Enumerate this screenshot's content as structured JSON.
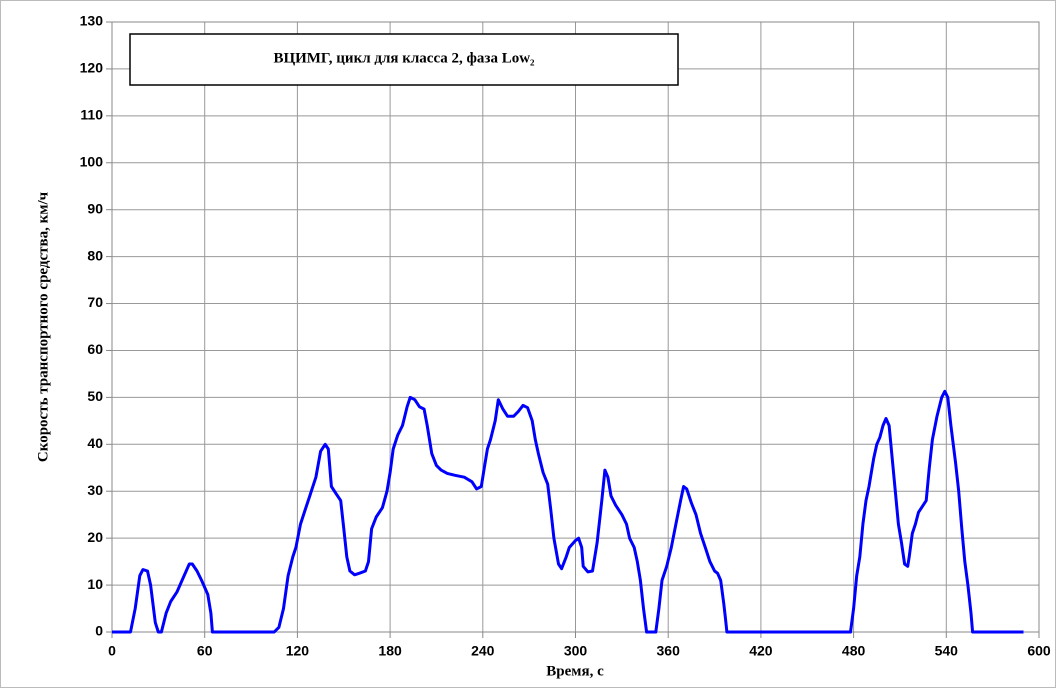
{
  "chart_data": {
    "type": "line",
    "title": "ВЦИМГ, цикл для класса 2, фаза Low₂",
    "x_label": "Время, с",
    "y_label": "Скорость транспортного средства, км/ч",
    "color": "#0000ff",
    "grid": true,
    "xlim": [
      0,
      600
    ],
    "ylim": [
      0,
      130
    ],
    "xticks": [
      0,
      60,
      120,
      180,
      240,
      300,
      360,
      420,
      480,
      540,
      600
    ],
    "yticks": [
      0,
      10,
      20,
      30,
      40,
      50,
      60,
      70,
      80,
      90,
      100,
      110,
      120,
      130
    ],
    "x": [
      0,
      12,
      15,
      18,
      20,
      23,
      25,
      28,
      30,
      32,
      35,
      38,
      42,
      46,
      50,
      52,
      55,
      58,
      62,
      64,
      65,
      68,
      105,
      108,
      111,
      114,
      117,
      119,
      122,
      125,
      128,
      132,
      135,
      138,
      140,
      142,
      145,
      148,
      150,
      152,
      154,
      157,
      160,
      164,
      166,
      168,
      171,
      175,
      178,
      180,
      182,
      185,
      188,
      191,
      193,
      196,
      199,
      202,
      204,
      207,
      210,
      213,
      217,
      222,
      228,
      233,
      236,
      239,
      241,
      243,
      245,
      248,
      250,
      253,
      256,
      260,
      263,
      266,
      269,
      272,
      274,
      276,
      279,
      282,
      284,
      286,
      289,
      291,
      294,
      296,
      300,
      302,
      304,
      305,
      308,
      311,
      314,
      317,
      319,
      321,
      323,
      326,
      330,
      333,
      335,
      338,
      340,
      342,
      344,
      346,
      348,
      352,
      354,
      356,
      359,
      362,
      365,
      368,
      370,
      372,
      375,
      378,
      381,
      384,
      387,
      390,
      392,
      394,
      396,
      397,
      398,
      478,
      480,
      482,
      484,
      486,
      488,
      490,
      493,
      495,
      497,
      499,
      501,
      503,
      505,
      507,
      509,
      511,
      513,
      515,
      516,
      518,
      520,
      522,
      525,
      527,
      529,
      531,
      534,
      537,
      539,
      541,
      543,
      546,
      548,
      550,
      552,
      554,
      556,
      557,
      590
    ],
    "values": [
      0,
      0,
      5,
      12,
      13.3,
      13,
      10,
      2,
      0,
      0,
      4,
      6.5,
      8.5,
      11.5,
      14.5,
      14.5,
      13,
      11,
      8,
      4,
      0,
      0,
      0,
      1,
      5,
      12,
      16,
      18,
      23,
      26,
      29,
      33,
      38.5,
      40,
      39,
      31,
      29.5,
      28,
      22,
      16,
      13,
      12.2,
      12.5,
      13,
      15,
      22,
      24.5,
      26.5,
      30,
      34,
      39,
      42,
      44,
      48,
      50,
      49.5,
      48,
      47.5,
      44,
      38,
      35.5,
      34.5,
      33.8,
      33.4,
      33,
      32,
      30.5,
      31,
      35,
      39,
      41,
      45,
      49.5,
      47.5,
      46,
      46,
      47,
      48.3,
      47.8,
      45,
      41,
      38,
      34,
      31.5,
      26,
      20,
      14.5,
      13.5,
      16,
      18,
      19.5,
      20,
      18,
      14,
      12.8,
      13,
      19,
      28,
      34.5,
      33,
      29,
      27,
      25,
      23,
      20,
      18,
      15,
      11,
      5,
      0,
      0,
      0,
      5,
      11,
      14,
      18,
      23,
      28,
      31,
      30.5,
      27.5,
      25,
      21,
      18,
      15,
      13,
      12.5,
      11,
      6,
      3,
      0,
      0,
      5,
      12,
      16,
      23,
      28,
      31,
      37,
      40,
      41.5,
      44,
      45.5,
      44,
      37,
      30,
      23,
      19,
      14.5,
      14,
      16,
      21,
      23,
      25.5,
      27,
      28,
      35,
      41,
      46,
      50,
      51.3,
      50,
      44,
      36,
      30,
      22,
      15,
      10,
      4,
      0,
      0
    ]
  }
}
